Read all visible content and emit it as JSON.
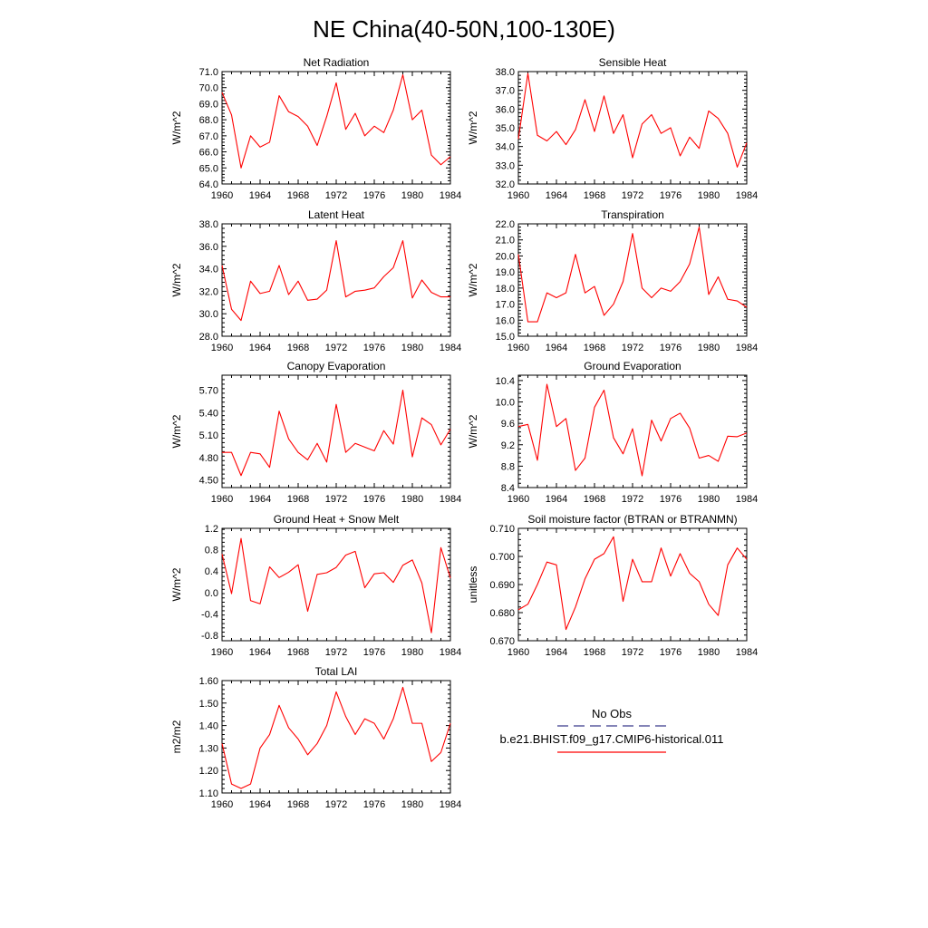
{
  "figure": {
    "title": "NE China(40-50N,100-130E)"
  },
  "legend": {
    "entries": [
      {
        "label": "No Obs",
        "color": "#3a3a8c",
        "dash": true
      },
      {
        "label": "b.e21.BHIST.f09_g17.CMIP6-historical.011",
        "color": "#ff0000",
        "dash": false
      }
    ]
  },
  "chart_data": [
    {
      "type": "line",
      "title": "Net Radiation",
      "ylabel": "W/m^2",
      "xlim": [
        1960,
        1984
      ],
      "ylim": [
        64,
        71
      ],
      "xticks": [
        1960,
        1964,
        1968,
        1972,
        1976,
        1980,
        1984
      ],
      "yticks": [
        64,
        65,
        66,
        67,
        68,
        69,
        70,
        71
      ],
      "ytick_labels": [
        "64.0",
        "65.0",
        "66.0",
        "67.0",
        "68.0",
        "69.0",
        "70.0",
        "71.0"
      ],
      "x": [
        1960,
        1961,
        1962,
        1963,
        1964,
        1965,
        1966,
        1967,
        1968,
        1969,
        1970,
        1971,
        1972,
        1973,
        1974,
        1975,
        1976,
        1977,
        1978,
        1979,
        1980,
        1981,
        1982,
        1983,
        1984
      ],
      "series": [
        {
          "color": "#ff0000",
          "values": [
            69.7,
            68.3,
            65.0,
            67.0,
            66.3,
            66.6,
            69.5,
            68.5,
            68.2,
            67.6,
            66.4,
            68.2,
            70.3,
            67.4,
            68.4,
            67.0,
            67.6,
            67.2,
            68.6,
            70.8,
            68.0,
            68.6,
            65.8,
            65.2,
            65.7
          ]
        }
      ]
    },
    {
      "type": "line",
      "title": "Sensible Heat",
      "ylabel": "W/m^2",
      "xlim": [
        1960,
        1984
      ],
      "ylim": [
        32,
        38
      ],
      "xticks": [
        1960,
        1964,
        1968,
        1972,
        1976,
        1980,
        1984
      ],
      "yticks": [
        32,
        33,
        34,
        35,
        36,
        37,
        38
      ],
      "ytick_labels": [
        "32.0",
        "33.0",
        "34.0",
        "35.0",
        "36.0",
        "37.0",
        "38.0"
      ],
      "x": [
        1960,
        1961,
        1962,
        1963,
        1964,
        1965,
        1966,
        1967,
        1968,
        1969,
        1970,
        1971,
        1972,
        1973,
        1974,
        1975,
        1976,
        1977,
        1978,
        1979,
        1980,
        1981,
        1982,
        1983,
        1984
      ],
      "series": [
        {
          "color": "#ff0000",
          "values": [
            34.4,
            37.9,
            34.6,
            34.3,
            34.8,
            34.1,
            34.9,
            36.5,
            34.8,
            36.7,
            34.7,
            35.7,
            33.4,
            35.2,
            35.7,
            34.7,
            35.0,
            33.5,
            34.5,
            33.9,
            35.9,
            35.5,
            34.7,
            32.9,
            34.2
          ]
        }
      ]
    },
    {
      "type": "line",
      "title": "Latent Heat",
      "ylabel": "W/m^2",
      "xlim": [
        1960,
        1984
      ],
      "ylim": [
        28,
        38
      ],
      "xticks": [
        1960,
        1964,
        1968,
        1972,
        1976,
        1980,
        1984
      ],
      "yticks": [
        28,
        30,
        32,
        34,
        36,
        38
      ],
      "ytick_labels": [
        "28.0",
        "30.0",
        "32.0",
        "34.0",
        "36.0",
        "38.0"
      ],
      "x": [
        1960,
        1961,
        1962,
        1963,
        1964,
        1965,
        1966,
        1967,
        1968,
        1969,
        1970,
        1971,
        1972,
        1973,
        1974,
        1975,
        1976,
        1977,
        1978,
        1979,
        1980,
        1981,
        1982,
        1983,
        1984
      ],
      "series": [
        {
          "color": "#ff0000",
          "values": [
            34.3,
            30.4,
            29.4,
            32.9,
            31.8,
            32.0,
            34.3,
            31.7,
            32.9,
            31.2,
            31.3,
            32.1,
            36.5,
            31.5,
            32.0,
            32.1,
            32.3,
            33.3,
            34.1,
            36.5,
            31.4,
            33.0,
            31.9,
            31.5,
            31.5
          ]
        }
      ]
    },
    {
      "type": "line",
      "title": "Transpiration",
      "ylabel": "W/m^2",
      "xlim": [
        1960,
        1984
      ],
      "ylim": [
        15,
        22
      ],
      "xticks": [
        1960,
        1964,
        1968,
        1972,
        1976,
        1980,
        1984
      ],
      "yticks": [
        15,
        16,
        17,
        18,
        19,
        20,
        21,
        22
      ],
      "ytick_labels": [
        "15.0",
        "16.0",
        "17.0",
        "18.0",
        "19.0",
        "20.0",
        "21.0",
        "22.0"
      ],
      "x": [
        1960,
        1961,
        1962,
        1963,
        1964,
        1965,
        1966,
        1967,
        1968,
        1969,
        1970,
        1971,
        1972,
        1973,
        1974,
        1975,
        1976,
        1977,
        1978,
        1979,
        1980,
        1981,
        1982,
        1983,
        1984
      ],
      "series": [
        {
          "color": "#ff0000",
          "values": [
            20.1,
            15.9,
            15.9,
            17.7,
            17.4,
            17.7,
            20.1,
            17.7,
            18.1,
            16.3,
            17.0,
            18.4,
            21.4,
            18.0,
            17.4,
            18.0,
            17.8,
            18.4,
            19.5,
            21.8,
            17.6,
            18.7,
            17.3,
            17.2,
            16.8
          ]
        }
      ]
    },
    {
      "type": "line",
      "title": "Canopy Evaporation",
      "ylabel": "W/m^2",
      "xlim": [
        1960,
        1984
      ],
      "ylim": [
        4.4,
        5.9
      ],
      "xticks": [
        1960,
        1964,
        1968,
        1972,
        1976,
        1980,
        1984
      ],
      "yticks": [
        4.5,
        4.8,
        5.1,
        5.4,
        5.7
      ],
      "ytick_labels": [
        "4.50",
        "4.80",
        "5.10",
        "5.40",
        "5.70"
      ],
      "x": [
        1960,
        1961,
        1962,
        1963,
        1964,
        1965,
        1966,
        1967,
        1968,
        1969,
        1970,
        1971,
        1972,
        1973,
        1974,
        1975,
        1976,
        1977,
        1978,
        1979,
        1980,
        1981,
        1982,
        1983,
        1984
      ],
      "series": [
        {
          "color": "#ff0000",
          "values": [
            4.87,
            4.87,
            4.56,
            4.87,
            4.85,
            4.67,
            5.42,
            5.05,
            4.87,
            4.77,
            4.99,
            4.74,
            5.51,
            4.87,
            4.99,
            4.94,
            4.89,
            5.16,
            4.98,
            5.7,
            4.81,
            5.33,
            5.24,
            4.97,
            5.18
          ]
        }
      ]
    },
    {
      "type": "line",
      "title": "Ground Evaporation",
      "ylabel": "W/m^2",
      "xlim": [
        1960,
        1984
      ],
      "ylim": [
        8.4,
        10.5
      ],
      "xticks": [
        1960,
        1964,
        1968,
        1972,
        1976,
        1980,
        1984
      ],
      "yticks": [
        8.4,
        8.8,
        9.2,
        9.6,
        10.0,
        10.4
      ],
      "ytick_labels": [
        "8.4",
        "8.8",
        "9.2",
        "9.6",
        "10.0",
        "10.4"
      ],
      "x": [
        1960,
        1961,
        1962,
        1963,
        1964,
        1965,
        1966,
        1967,
        1968,
        1969,
        1970,
        1971,
        1972,
        1973,
        1974,
        1975,
        1976,
        1977,
        1978,
        1979,
        1980,
        1981,
        1982,
        1983,
        1984
      ],
      "series": [
        {
          "color": "#ff0000",
          "values": [
            9.54,
            9.58,
            8.91,
            10.33,
            9.54,
            9.69,
            8.72,
            8.95,
            9.9,
            10.22,
            9.33,
            9.03,
            9.5,
            8.62,
            9.66,
            9.27,
            9.69,
            9.79,
            9.51,
            8.95,
            9.0,
            8.89,
            9.36,
            9.35,
            9.42
          ]
        }
      ]
    },
    {
      "type": "line",
      "title": "Ground Heat + Snow Melt",
      "ylabel": "W/m^2",
      "xlim": [
        1960,
        1984
      ],
      "ylim": [
        -0.9,
        1.2
      ],
      "xticks": [
        1960,
        1964,
        1968,
        1972,
        1976,
        1980,
        1984
      ],
      "yticks": [
        -0.8,
        -0.4,
        0.0,
        0.4,
        0.8,
        1.2
      ],
      "ytick_labels": [
        "-0.8",
        "-0.4",
        "0.0",
        "0.4",
        "0.8",
        "1.2"
      ],
      "x": [
        1960,
        1961,
        1962,
        1963,
        1964,
        1965,
        1966,
        1967,
        1968,
        1969,
        1970,
        1971,
        1972,
        1973,
        1974,
        1975,
        1976,
        1977,
        1978,
        1979,
        1980,
        1981,
        1982,
        1983,
        1984
      ],
      "series": [
        {
          "color": "#ff0000",
          "values": [
            0.72,
            -0.02,
            1.01,
            -0.15,
            -0.21,
            0.48,
            0.28,
            0.38,
            0.52,
            -0.35,
            0.34,
            0.37,
            0.47,
            0.7,
            0.77,
            0.09,
            0.35,
            0.37,
            0.19,
            0.51,
            0.61,
            0.18,
            -0.75,
            0.84,
            0.27
          ]
        }
      ]
    },
    {
      "type": "line",
      "title": "Soil moisture factor (BTRAN or BTRANMN)",
      "ylabel": "unitless",
      "xlim": [
        1960,
        1984
      ],
      "ylim": [
        0.67,
        0.71
      ],
      "xticks": [
        1960,
        1964,
        1968,
        1972,
        1976,
        1980,
        1984
      ],
      "yticks": [
        0.67,
        0.68,
        0.69,
        0.7,
        0.71
      ],
      "ytick_labels": [
        "0.670",
        "0.680",
        "0.690",
        "0.700",
        "0.710"
      ],
      "x": [
        1960,
        1961,
        1962,
        1963,
        1964,
        1965,
        1966,
        1967,
        1968,
        1969,
        1970,
        1971,
        1972,
        1973,
        1974,
        1975,
        1976,
        1977,
        1978,
        1979,
        1980,
        1981,
        1982,
        1983,
        1984
      ],
      "series": [
        {
          "color": "#ff0000",
          "values": [
            0.681,
            0.683,
            0.69,
            0.698,
            0.697,
            0.674,
            0.682,
            0.692,
            0.699,
            0.701,
            0.707,
            0.684,
            0.699,
            0.691,
            0.691,
            0.703,
            0.693,
            0.701,
            0.694,
            0.691,
            0.683,
            0.679,
            0.697,
            0.703,
            0.699
          ]
        }
      ]
    },
    {
      "type": "line",
      "title": "Total LAI",
      "ylabel": "m2/m2",
      "xlim": [
        1960,
        1984
      ],
      "ylim": [
        1.1,
        1.6
      ],
      "xticks": [
        1960,
        1964,
        1968,
        1972,
        1976,
        1980,
        1984
      ],
      "yticks": [
        1.1,
        1.2,
        1.3,
        1.4,
        1.5,
        1.6
      ],
      "ytick_labels": [
        "1.10",
        "1.20",
        "1.30",
        "1.40",
        "1.50",
        "1.60"
      ],
      "x": [
        1960,
        1961,
        1962,
        1963,
        1964,
        1965,
        1966,
        1967,
        1968,
        1969,
        1970,
        1971,
        1972,
        1973,
        1974,
        1975,
        1976,
        1977,
        1978,
        1979,
        1980,
        1981,
        1982,
        1983,
        1984
      ],
      "series": [
        {
          "color": "#ff0000",
          "values": [
            1.32,
            1.14,
            1.12,
            1.14,
            1.3,
            1.36,
            1.49,
            1.39,
            1.34,
            1.27,
            1.32,
            1.4,
            1.55,
            1.44,
            1.36,
            1.43,
            1.41,
            1.34,
            1.43,
            1.57,
            1.41,
            1.41,
            1.24,
            1.28,
            1.41
          ]
        }
      ]
    }
  ]
}
